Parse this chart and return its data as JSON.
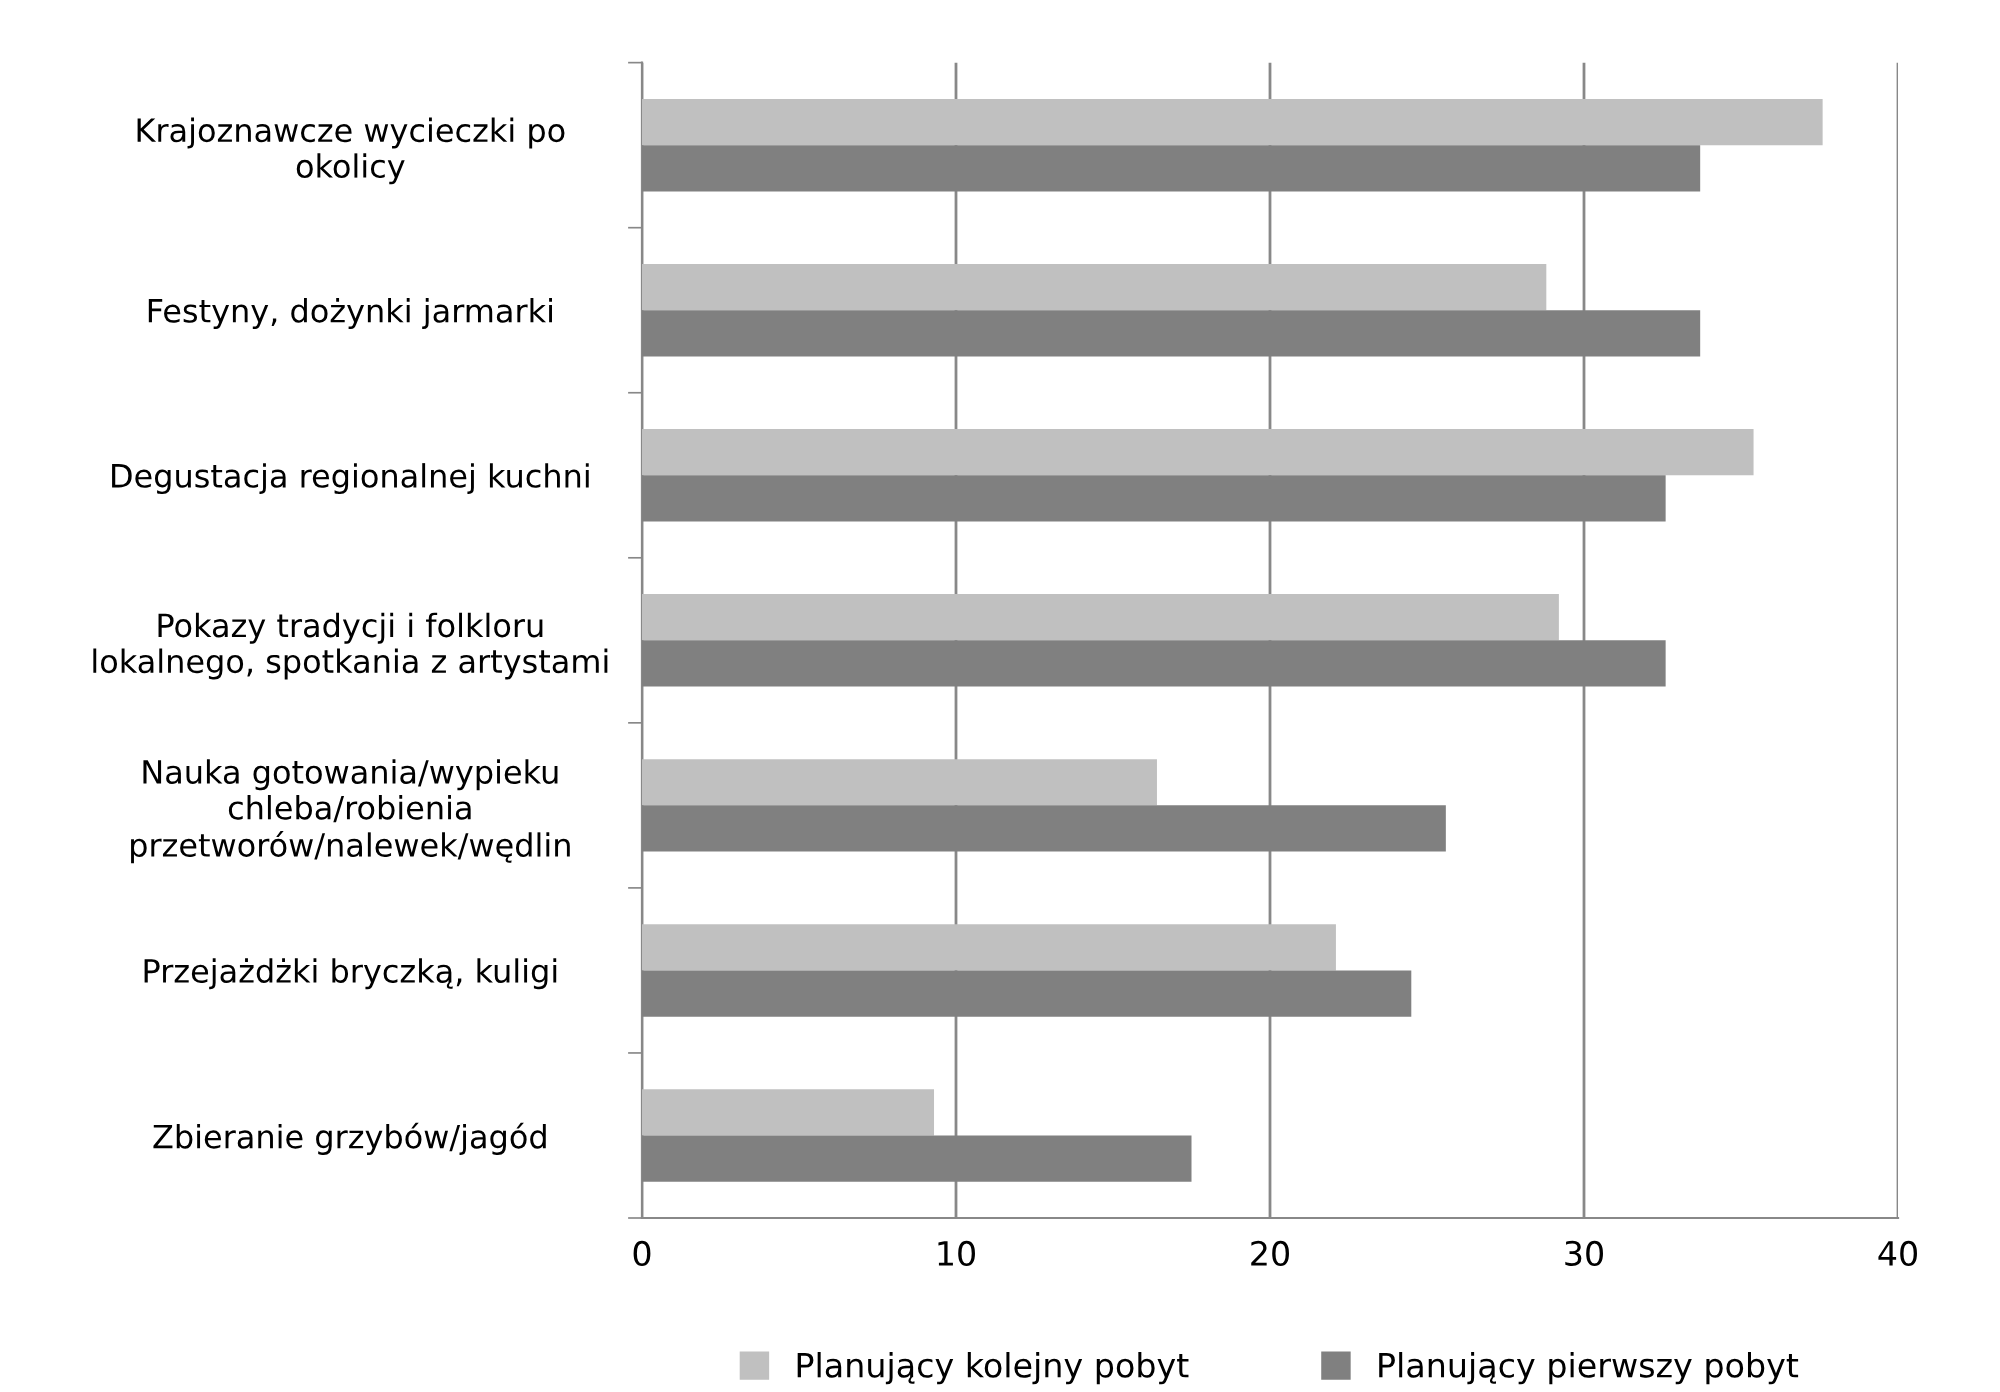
{
  "chart_data": {
    "type": "bar",
    "orientation": "horizontal",
    "categories": [
      "Krajoznawcze wycieczki po\nokolicy",
      "Festyny, dożynki jarmarki",
      "Degustacja regionalnej kuchni",
      "Pokazy tradycji i folkloru\nlokalnego, spotkania z artystami",
      "Nauka gotowania/wypieku\nchleba/robienia\nprzetworów/nalewek/wędlin",
      "Przejażdżki bryczką, kuligi",
      "Zbieranie grzybów/jagód"
    ],
    "series": [
      {
        "name": "Planujący kolejny pobyt",
        "color": "#c0c0c0",
        "values": [
          37.6,
          28.8,
          35.4,
          29.2,
          16.4,
          22.1,
          9.3
        ]
      },
      {
        "name": "Planujący pierwszy pobyt",
        "color": "#808080",
        "values": [
          33.7,
          33.7,
          32.6,
          32.6,
          25.6,
          24.5,
          17.5
        ]
      }
    ],
    "xlim": [
      0,
      40
    ],
    "xticks": [
      0,
      10,
      20,
      30,
      40
    ],
    "grid": "x",
    "legend": "bottom"
  }
}
